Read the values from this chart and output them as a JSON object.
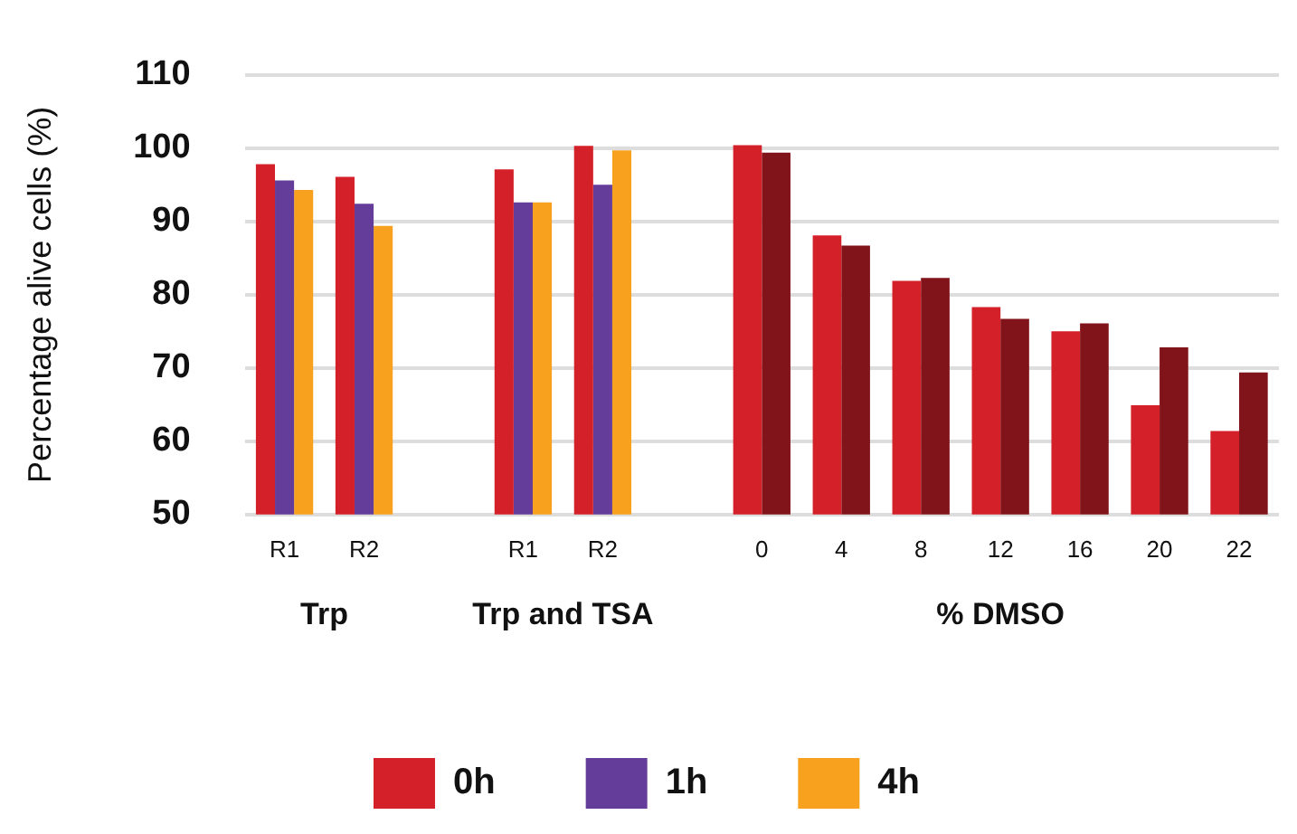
{
  "chart_data": {
    "type": "bar",
    "ylabel": "Percentage alive cells (%)",
    "categories": [
      "R1",
      "R2",
      null,
      "R1",
      "R2",
      null,
      "0",
      "4",
      "8",
      "12",
      "16",
      "20",
      "22"
    ],
    "series": [
      {
        "name": "0h",
        "color": "#d42029",
        "values": [
          97.8,
          96.1,
          null,
          97.1,
          100.3,
          null,
          100.4,
          88.1,
          81.9,
          78.3,
          75.0,
          64.9,
          61.4
        ]
      },
      {
        "color": "#80141a",
        "values": [
          null,
          null,
          null,
          null,
          null,
          null,
          99.4,
          86.7,
          82.3,
          76.7,
          76.1,
          72.8,
          69.4
        ]
      },
      {
        "name": "1h",
        "color": "#643d9a",
        "values": [
          95.6,
          92.4,
          null,
          92.6,
          95.0,
          null,
          null,
          null,
          null,
          null,
          null,
          null,
          null
        ]
      },
      {
        "name": "4h",
        "color": "#f7a11e",
        "values": [
          94.3,
          89.4,
          null,
          92.6,
          99.7,
          null,
          null,
          null,
          null,
          null,
          null,
          null,
          null
        ]
      }
    ],
    "ylim": [
      50,
      110
    ],
    "yticks": [
      50,
      60,
      70,
      80,
      90,
      100,
      110
    ],
    "grid": "y",
    "legend": "bottom",
    "annotations": [
      "Trp",
      "Trp and TSA",
      "% DMSO"
    ]
  }
}
